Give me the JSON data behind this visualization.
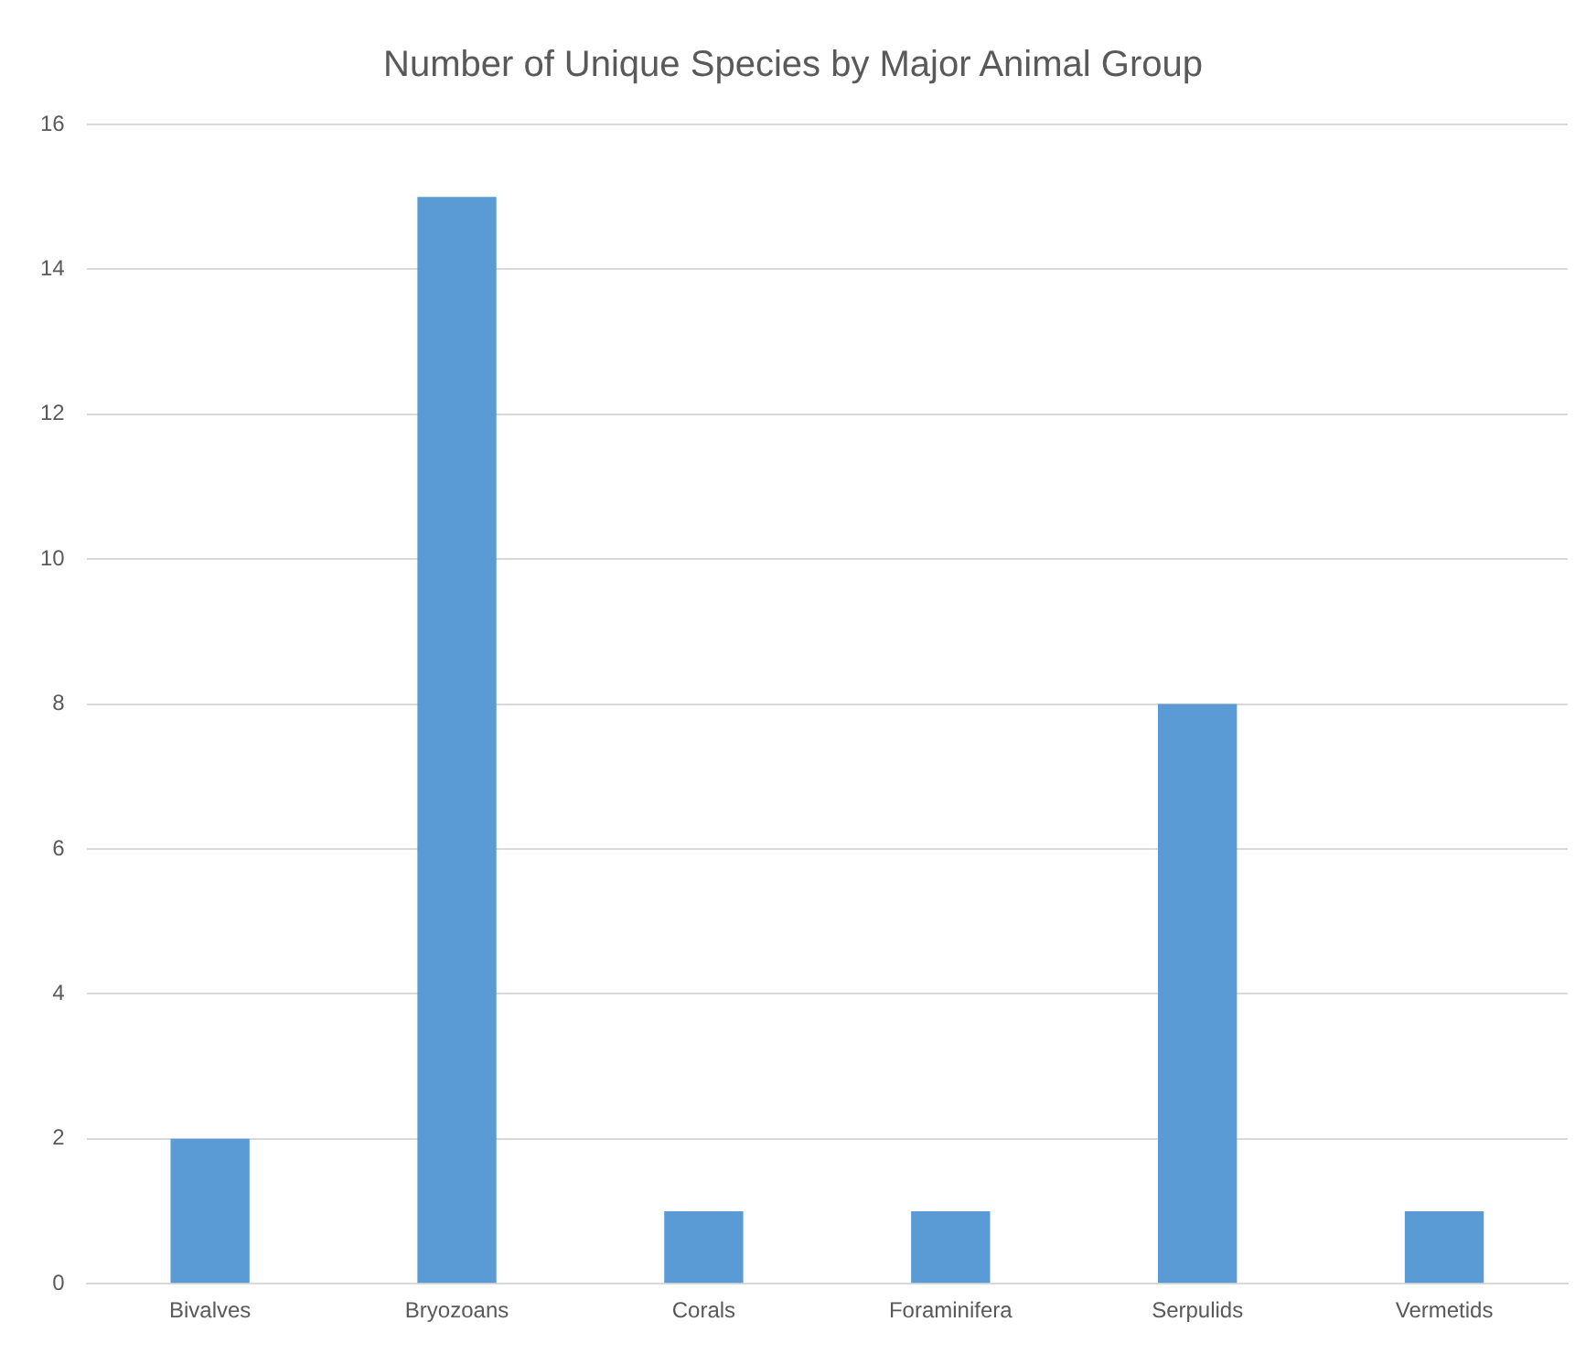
{
  "chart_data": {
    "type": "bar",
    "title": "Number of Unique Species by Major Animal Group",
    "categories": [
      "Bivalves",
      "Bryozoans",
      "Corals",
      "Foraminifera",
      "Serpulids",
      "Vermetids"
    ],
    "values": [
      2,
      15,
      1,
      1,
      8,
      1
    ],
    "color": "#5b9bd5",
    "ylim": [
      0,
      16
    ],
    "yticks": [
      0,
      2,
      4,
      6,
      8,
      10,
      12,
      14,
      16
    ],
    "grid": "y",
    "legend": false
  }
}
